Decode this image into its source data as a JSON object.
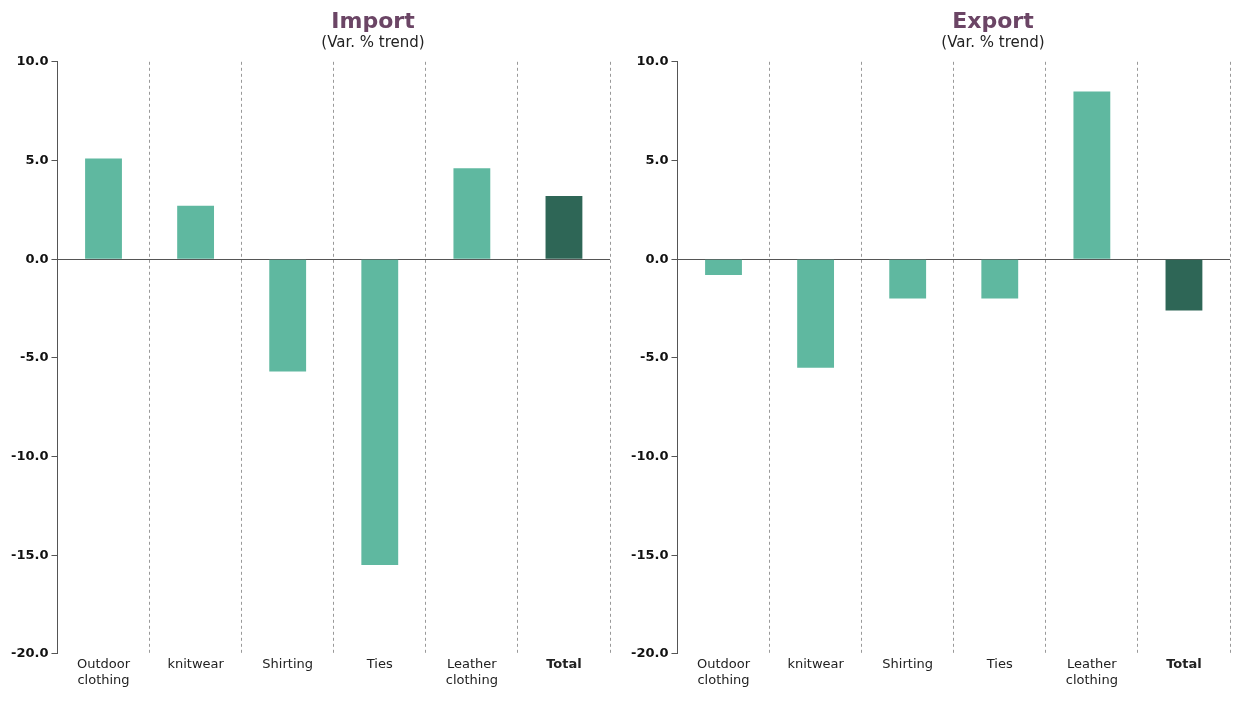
{
  "chart_data": [
    {
      "type": "bar",
      "title": "Import",
      "subtitle": "(Var. % trend)",
      "categories": [
        "Outdoor clothing",
        "knitwear",
        "Shirting",
        "Ties",
        "Leather clothing",
        "Total"
      ],
      "values": [
        5.1,
        2.7,
        -5.7,
        -15.5,
        4.6,
        3.2
      ],
      "colors": [
        "#5fb8a0",
        "#5fb8a0",
        "#5fb8a0",
        "#5fb8a0",
        "#5fb8a0",
        "#2e6656"
      ],
      "ylim": [
        -20,
        10
      ],
      "yticks": [
        {
          "value": -20,
          "label": "-20.0"
        },
        {
          "value": -15,
          "label": "-15.0"
        },
        {
          "value": -10,
          "label": "-10.0"
        },
        {
          "value": -5,
          "label": "-5.0"
        },
        {
          "value": 0,
          "label": "0.0"
        },
        {
          "value": 5,
          "label": "5.0"
        },
        {
          "value": 10,
          "label": "10.0"
        }
      ],
      "grid": "x"
    },
    {
      "type": "bar",
      "title": "Export",
      "subtitle": "(Var. % trend)",
      "categories": [
        "Outdoor clothing",
        "knitwear",
        "Shirting",
        "Ties",
        "Leather clothing",
        "Total"
      ],
      "values": [
        -0.8,
        -5.5,
        -2.0,
        -2.0,
        8.5,
        -2.6
      ],
      "colors": [
        "#5fb8a0",
        "#5fb8a0",
        "#5fb8a0",
        "#5fb8a0",
        "#5fb8a0",
        "#2e6656"
      ],
      "ylim": [
        -20,
        10
      ],
      "yticks": [
        {
          "value": -20,
          "label": "-20.0"
        },
        {
          "value": -15,
          "label": "-15.0"
        },
        {
          "value": -10,
          "label": "-10.0"
        },
        {
          "value": -5,
          "label": "-5.0"
        },
        {
          "value": 0,
          "label": "0.0"
        },
        {
          "value": 5,
          "label": "5.0"
        },
        {
          "value": 10,
          "label": "10.0"
        }
      ],
      "grid": "x"
    }
  ]
}
